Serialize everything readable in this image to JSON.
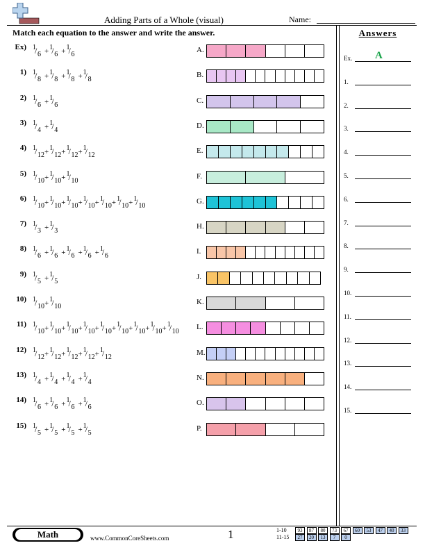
{
  "header": {
    "title": "Adding Parts of a Whole (visual)",
    "name_label": "Name:",
    "instructions": "Match each equation to the answer and write the answer."
  },
  "questions": [
    {
      "label": "Ex)",
      "n": 6,
      "count": 3
    },
    {
      "label": "1)",
      "n": 8,
      "count": 4
    },
    {
      "label": "2)",
      "n": 6,
      "count": 2
    },
    {
      "label": "3)",
      "n": 4,
      "count": 2
    },
    {
      "label": "4)",
      "n": 12,
      "count": 4
    },
    {
      "label": "5)",
      "n": 10,
      "count": 3
    },
    {
      "label": "6)",
      "n": 10,
      "count": 7
    },
    {
      "label": "7)",
      "n": 3,
      "count": 2
    },
    {
      "label": "8)",
      "n": 6,
      "count": 5
    },
    {
      "label": "9)",
      "n": 5,
      "count": 2
    },
    {
      "label": "10)",
      "n": 10,
      "count": 2
    },
    {
      "label": "11)",
      "n": 10,
      "count": 9
    },
    {
      "label": "12)",
      "n": 12,
      "count": 5
    },
    {
      "label": "13)",
      "n": 4,
      "count": 4
    },
    {
      "label": "14)",
      "n": 6,
      "count": 4
    },
    {
      "label": "15)",
      "n": 5,
      "count": 4
    }
  ],
  "options": [
    {
      "label": "A.",
      "parts": 6,
      "filled": 3,
      "color": "#f6a8c8"
    },
    {
      "label": "B.",
      "parts": 12,
      "filled": 4,
      "color": "#e8c6f2"
    },
    {
      "label": "C.",
      "parts": 5,
      "filled": 4,
      "color": "#d3c5ec"
    },
    {
      "label": "D.",
      "parts": 5,
      "filled": 2,
      "color": "#a8e8c6"
    },
    {
      "label": "E.",
      "parts": 10,
      "filled": 7,
      "color": "#c4e9ec"
    },
    {
      "label": "F.",
      "parts": 3,
      "filled": 2,
      "color": "#c7eedd"
    },
    {
      "label": "G.",
      "parts": 10,
      "filled": 6,
      "color": "#1ec3d7"
    },
    {
      "label": "H.",
      "parts": 6,
      "filled": 4,
      "color": "#d7d5c4"
    },
    {
      "label": "I.",
      "parts": 12,
      "filled": 4,
      "color": "#f9c6a8"
    },
    {
      "label": "J.",
      "parts": 10,
      "filled": 2,
      "color": "#f9c466"
    },
    {
      "label": "K.",
      "parts": 4,
      "filled": 2,
      "color": "#d8d8d8"
    },
    {
      "label": "L.",
      "parts": 8,
      "filled": 4,
      "color": "#f58ee0"
    },
    {
      "label": "M.",
      "parts": 12,
      "filled": 3,
      "color": "#c4cff6"
    },
    {
      "label": "N.",
      "parts": 6,
      "filled": 5,
      "color": "#f8b07e"
    },
    {
      "label": "O.",
      "parts": 6,
      "filled": 2,
      "color": "#d8c4ec"
    },
    {
      "label": "P.",
      "parts": 4,
      "filled": 2,
      "color": "#f5a0aa"
    }
  ],
  "answers": {
    "header": "Answers",
    "items": [
      {
        "label": "Ex.",
        "value": "A"
      },
      {
        "label": "1.",
        "value": ""
      },
      {
        "label": "2.",
        "value": ""
      },
      {
        "label": "3.",
        "value": ""
      },
      {
        "label": "4.",
        "value": ""
      },
      {
        "label": "5.",
        "value": ""
      },
      {
        "label": "6.",
        "value": ""
      },
      {
        "label": "7.",
        "value": ""
      },
      {
        "label": "8.",
        "value": ""
      },
      {
        "label": "9.",
        "value": ""
      },
      {
        "label": "10.",
        "value": ""
      },
      {
        "label": "11.",
        "value": ""
      },
      {
        "label": "12.",
        "value": ""
      },
      {
        "label": "13.",
        "value": ""
      },
      {
        "label": "14.",
        "value": ""
      },
      {
        "label": "15.",
        "value": ""
      }
    ]
  },
  "footer": {
    "subject": "Math",
    "url": "www.CommonCoreSheets.com",
    "page": "1",
    "score_rows": [
      {
        "label": "1-10",
        "cells": [
          "93",
          "87",
          "80",
          "73",
          "67",
          "60",
          "53",
          "47",
          "40",
          "33"
        ],
        "highlight_from": 5
      },
      {
        "label": "11-15",
        "cells": [
          "27",
          "20",
          "13",
          "7",
          "0"
        ],
        "highlight_from": 0
      }
    ]
  }
}
